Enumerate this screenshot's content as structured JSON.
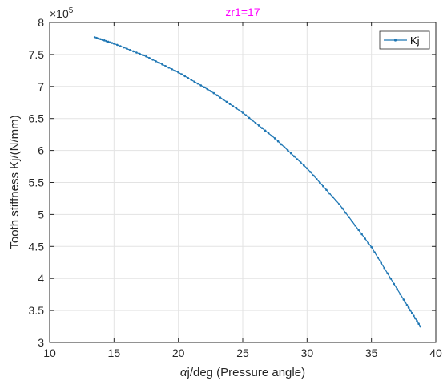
{
  "chart_data": {
    "type": "line",
    "title": "zr1=17",
    "title_color": "#ff00ff",
    "xlabel_symbol": "α",
    "xlabel_rest": "j/deg (Pressure angle)",
    "ylabel": "Tooth stiffness Kj/(N/mm)",
    "y_exponent_base": "×10",
    "y_exponent_power": "5",
    "xlim": [
      10,
      40
    ],
    "ylim": [
      3,
      8
    ],
    "xticks": [
      10,
      15,
      20,
      25,
      30,
      35,
      40
    ],
    "yticks": [
      3,
      3.5,
      4,
      4.5,
      5,
      5.5,
      6,
      6.5,
      7,
      7.5,
      8
    ],
    "grid": true,
    "legend_position": "top-right",
    "series": [
      {
        "name": "Kj",
        "color": "#1f77b4",
        "marker": "dot",
        "x": [
          13.5,
          15,
          17.5,
          20,
          22.5,
          25,
          27.5,
          30,
          32.5,
          35,
          37.5,
          38.8
        ],
        "y": [
          7.77,
          7.67,
          7.47,
          7.22,
          6.93,
          6.59,
          6.19,
          5.72,
          5.16,
          4.49,
          3.67,
          3.25
        ]
      }
    ]
  }
}
